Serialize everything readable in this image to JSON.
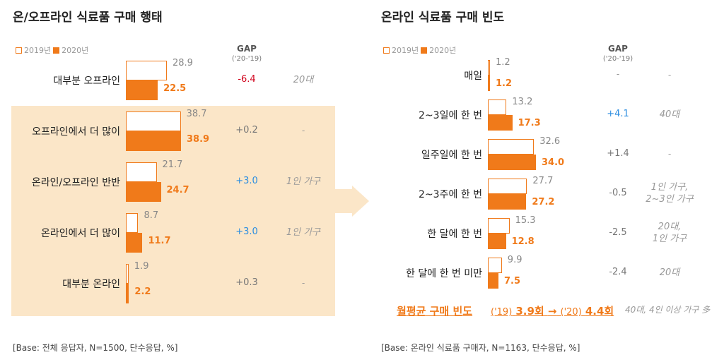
{
  "colors": {
    "accent": "#f07a1a",
    "highlight": "#fbe6c8",
    "negative": "#d0021b",
    "positive": "#2b8de0",
    "neutral": "#777777"
  },
  "gap_header": "GAP",
  "gap_sub": "('20-'19)",
  "legend": {
    "y2019": "2019년",
    "y2020": "2020년"
  },
  "chart_data": [
    {
      "type": "bar",
      "title": "온/오프라인 식료품 구매 행태",
      "series": [
        {
          "name": "2019년",
          "values": [
            28.9,
            38.7,
            21.7,
            8.7,
            1.9
          ]
        },
        {
          "name": "2020년",
          "values": [
            22.5,
            38.9,
            24.7,
            11.7,
            2.2
          ]
        }
      ],
      "categories": [
        "대부분 오프라인",
        "오프라인에서 더 많이",
        "온라인/오프라인 반반",
        "온라인에서 더 많이",
        "대부분 온라인"
      ],
      "gaps": [
        "-6.4",
        "+0.2",
        "+3.0",
        "+3.0",
        "+0.3"
      ],
      "gap_types": [
        "negative",
        "neutral",
        "positive",
        "positive",
        "neutral"
      ],
      "notes": [
        "20대",
        "-",
        "1인 가구",
        "1인 가구",
        "-"
      ],
      "highlight_rows": [
        1,
        4
      ],
      "base": "[Base: 전체 응답자, N=1500, 단수응답, %]",
      "xlim": [
        0,
        40
      ]
    },
    {
      "type": "bar",
      "title": "온라인 식료품 구매 빈도",
      "series": [
        {
          "name": "2019년",
          "values": [
            1.2,
            13.2,
            32.6,
            27.7,
            15.3,
            9.9
          ]
        },
        {
          "name": "2020년",
          "values": [
            1.2,
            17.3,
            34.0,
            27.2,
            12.8,
            7.5
          ]
        }
      ],
      "categories": [
        "매일",
        "2~3일에 한 번",
        "일주일에 한 번",
        "2~3주에 한 번",
        "한 달에 한 번",
        "한 달에 한 번 미만"
      ],
      "gaps": [
        "-",
        "+4.1",
        "+1.4",
        "-0.5",
        "-2.5",
        "-2.4"
      ],
      "gap_types": [
        "neutral",
        "positive",
        "neutral",
        "neutral",
        "neutral",
        "neutral"
      ],
      "notes": [
        "-",
        "40대",
        "-",
        "1인 가구,\n2~3인 가구",
        "20대,\n1인 가구",
        "20대"
      ],
      "base": "[Base: 온라인 식료품 구매자, N=1163, 단수응답, %]",
      "xlim": [
        0,
        40
      ]
    }
  ],
  "monthly": {
    "label": "월평균 구매 빈도",
    "y19_prefix": "('19)",
    "y19_value": "3.9회",
    "arrow": "→",
    "y20_prefix": "('20)",
    "y20_value": "4.4회",
    "note": "40대, 4인 이상 가구 多"
  }
}
